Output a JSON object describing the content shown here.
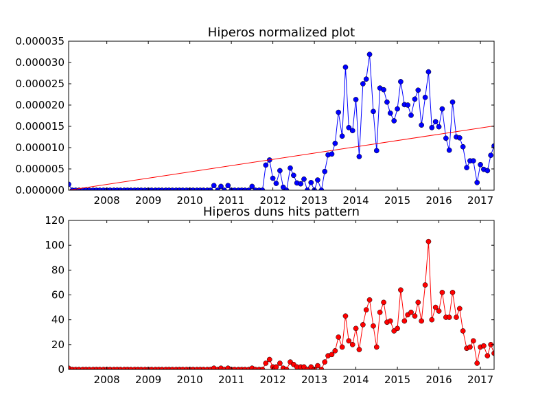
{
  "chart_data": [
    {
      "type": "line",
      "title": "Hiperos normalized plot",
      "xlabel": "",
      "ylabel": "",
      "x_tick_labels": [
        "2008",
        "2009",
        "2010",
        "2011",
        "2012",
        "2013",
        "2014",
        "2015",
        "2016",
        "2017"
      ],
      "y_tick_labels": [
        "0.000000",
        "0.000005",
        "0.000010",
        "0.000015",
        "0.000020",
        "0.000025",
        "0.000030",
        "0.000035"
      ],
      "xlim": [
        2007.08,
        2017.33
      ],
      "ylim": [
        0,
        3.5e-05
      ],
      "grid": false,
      "legend": "none",
      "series": [
        {
          "color": "#0000ff",
          "marker": "circle",
          "x": [
            2007.08,
            2007.17,
            2007.25,
            2007.33,
            2007.42,
            2007.5,
            2007.58,
            2007.67,
            2007.75,
            2007.83,
            2007.92,
            2008.0,
            2008.08,
            2008.17,
            2008.25,
            2008.33,
            2008.42,
            2008.5,
            2008.58,
            2008.67,
            2008.75,
            2008.83,
            2008.92,
            2009.0,
            2009.08,
            2009.17,
            2009.25,
            2009.33,
            2009.42,
            2009.5,
            2009.58,
            2009.67,
            2009.75,
            2009.83,
            2009.92,
            2010.0,
            2010.08,
            2010.17,
            2010.25,
            2010.33,
            2010.42,
            2010.5,
            2010.58,
            2010.67,
            2010.75,
            2010.83,
            2010.92,
            2011.0,
            2011.08,
            2011.17,
            2011.25,
            2011.33,
            2011.42,
            2011.5,
            2011.58,
            2011.67,
            2011.75,
            2011.83,
            2011.92,
            2012.0,
            2012.08,
            2012.17,
            2012.25,
            2012.33,
            2012.42,
            2012.5,
            2012.58,
            2012.67,
            2012.75,
            2012.83,
            2012.92,
            2013.0,
            2013.08,
            2013.17,
            2013.25,
            2013.33,
            2013.42,
            2013.5,
            2013.58,
            2013.67,
            2013.75,
            2013.83,
            2013.92,
            2014.0,
            2014.08,
            2014.17,
            2014.25,
            2014.33,
            2014.42,
            2014.5,
            2014.58,
            2014.67,
            2014.75,
            2014.83,
            2014.92,
            2015.0,
            2015.08,
            2015.17,
            2015.25,
            2015.33,
            2015.42,
            2015.5,
            2015.58,
            2015.67,
            2015.75,
            2015.83,
            2015.92,
            2016.0,
            2016.08,
            2016.17,
            2016.25,
            2016.33,
            2016.42,
            2016.5,
            2016.58,
            2016.67,
            2016.75,
            2016.83,
            2016.92,
            2017.0,
            2017.08,
            2017.17,
            2017.25,
            2017.33
          ],
          "y": [
            1.4e-06,
            0,
            0,
            0,
            0,
            0,
            0,
            0,
            0,
            0,
            0,
            0,
            0,
            0,
            0,
            0,
            0,
            0,
            0,
            0,
            0,
            0,
            0,
            0,
            0,
            0,
            0,
            0,
            0,
            0,
            0,
            0,
            0,
            0,
            0,
            0,
            0,
            0,
            0,
            0,
            0,
            0,
            1.1e-06,
            0,
            9e-07,
            0,
            1.1e-06,
            0,
            0,
            0,
            0,
            0,
            0,
            9e-07,
            0,
            0,
            0,
            5.9e-06,
            7.1e-06,
            2.8e-06,
            1.6e-06,
            4.6e-06,
            7e-07,
            0,
            5.2e-06,
            3.5e-06,
            1.7e-06,
            1.5e-06,
            2.6e-06,
            0,
            1.8e-06,
            0,
            2.4e-06,
            0,
            4.4e-06,
            8.3e-06,
            8.5e-06,
            1.1e-05,
            1.83e-05,
            1.27e-05,
            2.89e-05,
            1.47e-05,
            1.4e-05,
            2.13e-05,
            7.9e-06,
            2.5e-05,
            2.61e-05,
            3.19e-05,
            1.85e-05,
            9.3e-06,
            2.4e-05,
            2.36e-05,
            2.07e-05,
            1.81e-05,
            1.63e-05,
            1.91e-05,
            2.55e-05,
            2.01e-05,
            2e-05,
            1.76e-05,
            2.14e-05,
            2.35e-05,
            1.53e-05,
            2.18e-05,
            2.78e-05,
            1.47e-05,
            1.61e-05,
            1.49e-05,
            1.91e-05,
            1.22e-05,
            9.4e-06,
            2.07e-05,
            1.25e-05,
            1.23e-05,
            1.02e-05,
            5.3e-06,
            6.9e-06,
            6.9e-06,
            1.8e-06,
            6e-06,
            4.9e-06,
            4.6e-06,
            8.2e-06,
            1.04e-05
          ]
        },
        {
          "color": "#ff0000",
          "marker": "none",
          "x": [
            2007.08,
            2017.33
          ],
          "y": [
            0,
            1.51e-05
          ]
        }
      ]
    },
    {
      "type": "line",
      "title": "Hiperos duns hits pattern",
      "xlabel": "",
      "ylabel": "",
      "x_tick_labels": [
        "2008",
        "2009",
        "2010",
        "2011",
        "2012",
        "2013",
        "2014",
        "2015",
        "2016",
        "2017"
      ],
      "y_tick_labels": [
        "0",
        "20",
        "40",
        "60",
        "80",
        "100",
        "120"
      ],
      "xlim": [
        2007.08,
        2017.33
      ],
      "ylim": [
        0,
        120
      ],
      "grid": false,
      "legend": "none",
      "series": [
        {
          "color": "#ff0000",
          "marker": "circle",
          "x": [
            2007.08,
            2007.17,
            2007.25,
            2007.33,
            2007.42,
            2007.5,
            2007.58,
            2007.67,
            2007.75,
            2007.83,
            2007.92,
            2008.0,
            2008.08,
            2008.17,
            2008.25,
            2008.33,
            2008.42,
            2008.5,
            2008.58,
            2008.67,
            2008.75,
            2008.83,
            2008.92,
            2009.0,
            2009.08,
            2009.17,
            2009.25,
            2009.33,
            2009.42,
            2009.5,
            2009.58,
            2009.67,
            2009.75,
            2009.83,
            2009.92,
            2010.0,
            2010.08,
            2010.17,
            2010.25,
            2010.33,
            2010.42,
            2010.5,
            2010.58,
            2010.67,
            2010.75,
            2010.83,
            2010.92,
            2011.0,
            2011.08,
            2011.17,
            2011.25,
            2011.33,
            2011.42,
            2011.5,
            2011.58,
            2011.67,
            2011.75,
            2011.83,
            2011.92,
            2012.0,
            2012.08,
            2012.17,
            2012.25,
            2012.33,
            2012.42,
            2012.5,
            2012.58,
            2012.67,
            2012.75,
            2012.83,
            2012.92,
            2013.0,
            2013.08,
            2013.17,
            2013.25,
            2013.33,
            2013.42,
            2013.5,
            2013.58,
            2013.67,
            2013.75,
            2013.83,
            2013.92,
            2014.0,
            2014.08,
            2014.17,
            2014.25,
            2014.33,
            2014.42,
            2014.5,
            2014.58,
            2014.67,
            2014.75,
            2014.83,
            2014.92,
            2015.0,
            2015.08,
            2015.17,
            2015.25,
            2015.33,
            2015.42,
            2015.5,
            2015.58,
            2015.67,
            2015.75,
            2015.83,
            2015.92,
            2016.0,
            2016.08,
            2016.17,
            2016.25,
            2016.33,
            2016.42,
            2016.5,
            2016.58,
            2016.67,
            2016.75,
            2016.83,
            2016.92,
            2017.0,
            2017.08,
            2017.17,
            2017.25,
            2017.33
          ],
          "y": [
            1,
            0,
            0,
            0,
            0,
            0,
            0,
            0,
            0,
            0,
            0,
            0,
            0,
            0,
            0,
            0,
            0,
            0,
            0,
            0,
            0,
            0,
            0,
            0,
            0,
            0,
            0,
            0,
            0,
            0,
            0,
            0,
            0,
            0,
            0,
            0,
            0,
            0,
            0,
            0,
            0,
            0,
            1,
            0,
            1,
            0,
            1,
            0,
            0,
            0,
            0,
            0,
            0,
            1,
            0,
            0,
            0,
            5,
            8,
            2,
            2,
            5,
            1,
            0,
            6,
            4,
            2,
            2,
            2,
            0,
            2,
            0,
            3,
            0,
            6,
            11,
            12,
            15,
            26,
            18,
            43,
            23,
            20,
            33,
            16,
            36,
            48,
            56,
            35,
            18,
            46,
            54,
            38,
            39,
            31,
            33,
            64,
            39,
            44,
            46,
            43,
            54,
            39,
            68,
            103,
            40,
            50,
            47,
            62,
            42,
            42,
            62,
            42,
            49,
            31,
            17,
            18,
            23,
            5,
            18,
            19,
            11,
            20,
            13
          ]
        }
      ]
    }
  ]
}
